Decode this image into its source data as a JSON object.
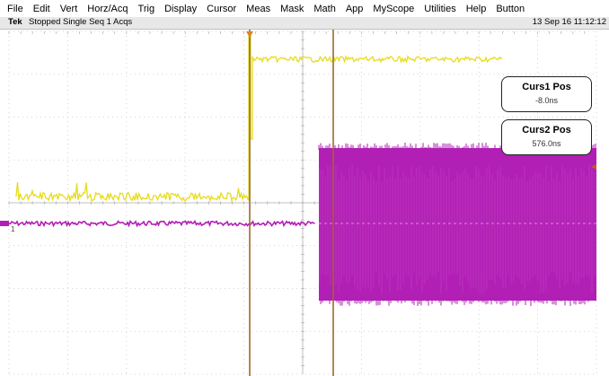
{
  "menubar": {
    "items": [
      "File",
      "Edit",
      "Vert",
      "Horz/Acq",
      "Trig",
      "Display",
      "Cursor",
      "Meas",
      "Mask",
      "Math",
      "App",
      "MyScope",
      "Utilities",
      "Help",
      "Button"
    ]
  },
  "status": {
    "brand": "Tek",
    "acquisition": "Stopped Single Seq 1 Acqs",
    "datetime": "13 Sep 16 11:12:12"
  },
  "cursors": {
    "curs1": {
      "label": "Curs1 Pos",
      "value": "-8.0ns"
    },
    "curs2": {
      "label": "Curs2 Pos",
      "value": "576.0ns"
    }
  },
  "channel_marker": "1",
  "colors": {
    "ch1_trace": "#e6dc1e",
    "ch2_trace": "#b21fb5",
    "cursor": "#9c6a2a",
    "graticule": "#c8c8c8",
    "status_bg": "#e8e8e8"
  },
  "icons": {
    "trigger_marker": "trigger-position-icon",
    "ch2_ground": "ch2-ground-marker-icon",
    "trigger_level": "trigger-level-marker-icon"
  }
}
